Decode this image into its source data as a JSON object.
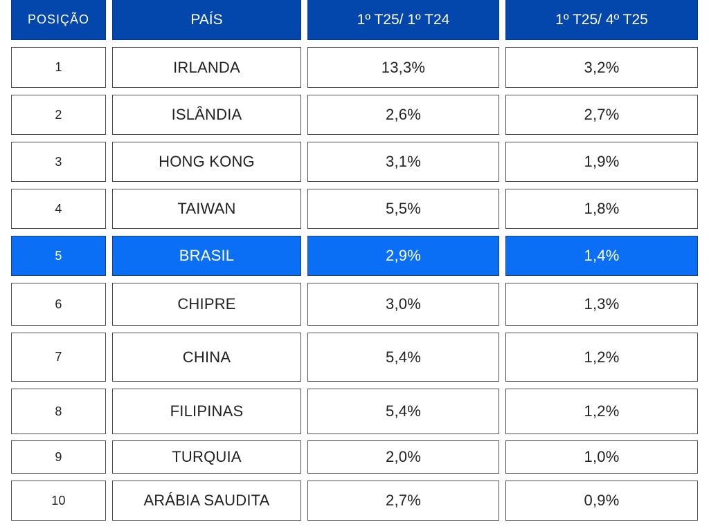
{
  "chart_data": {
    "type": "table",
    "columns": [
      "POSIÇÃO",
      "PAÍS",
      "1º T25/ 1º T24",
      "1º T25/ 4º T25"
    ],
    "rows": [
      {
        "pos": "1",
        "country": "IRLANDA",
        "yoy": "13,3%",
        "qoq": "3,2%",
        "highlight": false
      },
      {
        "pos": "2",
        "country": "ISLÂNDIA",
        "yoy": "2,6%",
        "qoq": "2,7%",
        "highlight": false
      },
      {
        "pos": "3",
        "country": "HONG KONG",
        "yoy": "3,1%",
        "qoq": "1,9%",
        "highlight": false
      },
      {
        "pos": "4",
        "country": "TAIWAN",
        "yoy": "5,5%",
        "qoq": "1,8%",
        "highlight": false
      },
      {
        "pos": "5",
        "country": "BRASIL",
        "yoy": "2,9%",
        "qoq": "1,4%",
        "highlight": true
      },
      {
        "pos": "6",
        "country": "CHIPRE",
        "yoy": "3,0%",
        "qoq": "1,3%",
        "highlight": false
      },
      {
        "pos": "7",
        "country": "CHINA",
        "yoy": "5,4%",
        "qoq": "1,2%",
        "highlight": false
      },
      {
        "pos": "8",
        "country": "FILIPINAS",
        "yoy": "5,4%",
        "qoq": "1,2%",
        "highlight": false
      },
      {
        "pos": "9",
        "country": "TURQUIA",
        "yoy": "2,0%",
        "qoq": "1,0%",
        "highlight": false
      },
      {
        "pos": "10",
        "country": "ARÁBIA SAUDITA",
        "yoy": "2,7%",
        "qoq": "0,9%",
        "highlight": false
      }
    ]
  },
  "colors": {
    "header_bg": "#0447ac",
    "highlight_bg": "#0a6ff5",
    "text": "#222222",
    "border": "#4a4a4a"
  }
}
